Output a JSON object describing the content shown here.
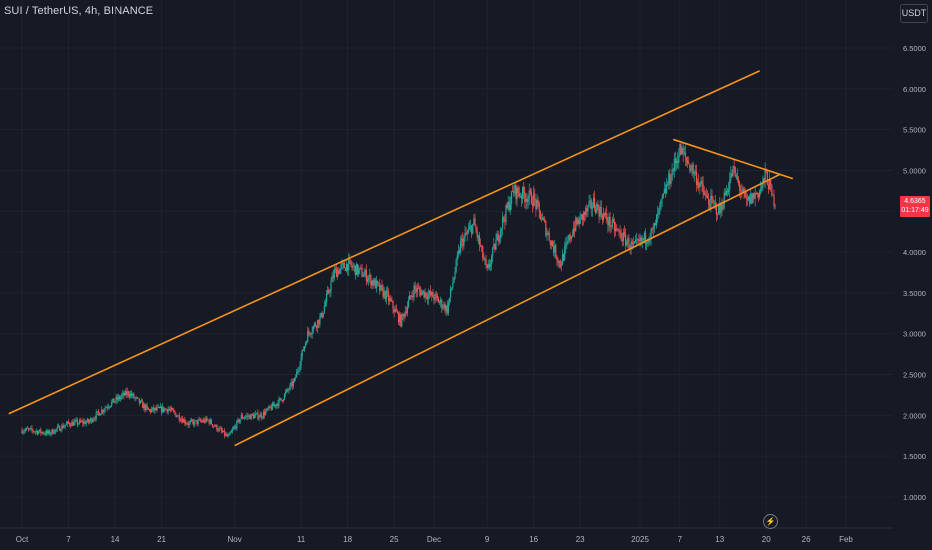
{
  "header": {
    "title": "SUI / TetherUS, 4h, BINANCE",
    "unit_label": "USDT"
  },
  "price_tag": {
    "price": "4.6365",
    "countdown": "01:17:49",
    "color": "#f23645"
  },
  "colors": {
    "background": "#161a25",
    "up": "#26a69a",
    "down": "#ef5350",
    "trendline": "#f7931a",
    "axis_text": "#b2b5be"
  },
  "chart_data": {
    "type": "candlestick",
    "symbol": "SUI / TetherUS",
    "interval": "4h",
    "exchange": "BINANCE",
    "ylim": [
      0.75,
      6.75
    ],
    "y_ticks": [
      "6.5000",
      "6.0000",
      "5.5000",
      "5.0000",
      "4.5000",
      "4.0000",
      "3.5000",
      "3.0000",
      "2.5000",
      "2.0000",
      "1.5000",
      "1.0000"
    ],
    "x_ticks": [
      "Oct",
      "7",
      "14",
      "21",
      "Nov",
      "11",
      "18",
      "25",
      "Dec",
      "9",
      "16",
      "23",
      "2025",
      "7",
      "13",
      "20",
      "26",
      "Feb"
    ],
    "price_path": [
      [
        "2024-10-01",
        1.82
      ],
      [
        "2024-10-04",
        1.78
      ],
      [
        "2024-10-07",
        1.9
      ],
      [
        "2024-10-10",
        1.92
      ],
      [
        "2024-10-13",
        2.13
      ],
      [
        "2024-10-16",
        2.28
      ],
      [
        "2024-10-19",
        2.06
      ],
      [
        "2024-10-22",
        2.08
      ],
      [
        "2024-10-25",
        1.9
      ],
      [
        "2024-10-28",
        1.94
      ],
      [
        "2024-10-31",
        1.73
      ],
      [
        "2024-11-02",
        1.98
      ],
      [
        "2024-11-05",
        2.0
      ],
      [
        "2024-11-08",
        2.19
      ],
      [
        "2024-11-10",
        2.42
      ],
      [
        "2024-11-12",
        3.0
      ],
      [
        "2024-11-14",
        3.2
      ],
      [
        "2024-11-16",
        3.75
      ],
      [
        "2024-11-18",
        3.85
      ],
      [
        "2024-11-21",
        3.7
      ],
      [
        "2024-11-24",
        3.45
      ],
      [
        "2024-11-26",
        3.15
      ],
      [
        "2024-11-28",
        3.55
      ],
      [
        "2024-12-01",
        3.45
      ],
      [
        "2024-12-03",
        3.3
      ],
      [
        "2024-12-05",
        4.1
      ],
      [
        "2024-12-07",
        4.35
      ],
      [
        "2024-12-09",
        3.75
      ],
      [
        "2024-12-11",
        4.3
      ],
      [
        "2024-12-13",
        4.75
      ],
      [
        "2024-12-16",
        4.65
      ],
      [
        "2024-12-18",
        4.25
      ],
      [
        "2024-12-20",
        3.85
      ],
      [
        "2024-12-22",
        4.3
      ],
      [
        "2024-12-25",
        4.6
      ],
      [
        "2024-12-28",
        4.3
      ],
      [
        "2024-12-31",
        4.05
      ],
      [
        "2025-01-03",
        4.25
      ],
      [
        "2025-01-05",
        4.8
      ],
      [
        "2025-01-07",
        5.25
      ],
      [
        "2025-01-09",
        5.0
      ],
      [
        "2025-01-11",
        4.65
      ],
      [
        "2025-01-13",
        4.5
      ],
      [
        "2025-01-15",
        5.0
      ],
      [
        "2025-01-17",
        4.6
      ],
      [
        "2025-01-19",
        4.75
      ],
      [
        "2025-01-20",
        4.95
      ],
      [
        "2025-01-21",
        4.64
      ]
    ],
    "trendlines": [
      {
        "name": "channel upper",
        "from": [
          "2024-09-28",
          2.02
        ],
        "to": [
          "2025-01-19",
          6.22
        ]
      },
      {
        "name": "channel lower",
        "from": [
          "2024-11-01",
          1.63
        ],
        "to": [
          "2025-01-22",
          4.95
        ]
      },
      {
        "name": "descending resistance",
        "from": [
          "2025-01-06",
          5.38
        ],
        "to": [
          "2025-01-24",
          4.9
        ]
      }
    ],
    "grid": true
  }
}
